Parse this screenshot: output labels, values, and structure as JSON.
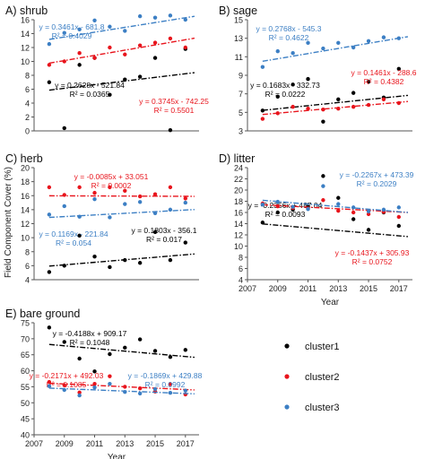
{
  "y_axis_label": "Field Component Cover (%)",
  "legend": {
    "placement": "bottom-right",
    "entries": [
      {
        "name": "cluster1",
        "color": "#000000"
      },
      {
        "name": "cluster2",
        "color": "#e8141c"
      },
      {
        "name": "cluster3",
        "color": "#3c7fc4"
      }
    ]
  },
  "chart_data": [
    {
      "id": "shrub",
      "type": "scatter",
      "title": "A) shrub",
      "xlabel": "",
      "ylabel": "",
      "xlim": [
        2007,
        2017.9
      ],
      "ylim": [
        0,
        16
      ],
      "yticks": [
        0,
        2,
        4,
        6,
        8,
        10,
        12,
        14,
        16
      ],
      "xticks": [],
      "series": [
        {
          "name": "cluster1",
          "color": "#000000",
          "x": [
            2008,
            2009,
            2010,
            2011,
            2012,
            2013,
            2014,
            2015,
            2016,
            2017
          ],
          "y": [
            7.0,
            0.4,
            9.5,
            10.5,
            5.2,
            7.4,
            7.8,
            10.5,
            0.1,
            11.8
          ],
          "fit": {
            "equation": "y = 0.2628x - 521.84",
            "r2": "R² = 0.0365",
            "a": 0.2628,
            "b": -521.84
          }
        },
        {
          "name": "cluster2",
          "color": "#e8141c",
          "x": [
            2008,
            2009,
            2010,
            2011,
            2012,
            2013,
            2014,
            2015,
            2016,
            2017
          ],
          "y": [
            9.5,
            10.0,
            11.2,
            10.5,
            12.0,
            11.0,
            12.3,
            12.7,
            13.3,
            12.0
          ],
          "fit": {
            "equation": "y = 0.3745x - 742.25",
            "r2": "R² = 0.5501",
            "a": 0.3745,
            "b": -742.25
          }
        },
        {
          "name": "cluster3",
          "color": "#3c7fc4",
          "x": [
            2008,
            2009,
            2010,
            2011,
            2012,
            2013,
            2014,
            2015,
            2016,
            2017
          ],
          "y": [
            12.5,
            14.1,
            14.6,
            15.9,
            15.0,
            14.4,
            16.5,
            16.3,
            16.6,
            16.0
          ],
          "fit": {
            "equation": "y = 0.3461x - 681.8",
            "r2": "R² = 0.4029",
            "a": 0.3461,
            "b": -681.8
          }
        }
      ]
    },
    {
      "id": "sage",
      "type": "scatter",
      "title": "B) sage",
      "xlabel": "",
      "ylabel": "",
      "xlim": [
        2007,
        2017.9
      ],
      "ylim": [
        3,
        15
      ],
      "yticks": [
        3,
        5,
        7,
        9,
        11,
        13,
        15
      ],
      "xticks": [],
      "series": [
        {
          "name": "cluster1",
          "color": "#000000",
          "x": [
            2008,
            2009,
            2010,
            2011,
            2012,
            2013,
            2014,
            2015,
            2016,
            2017
          ],
          "y": [
            5.2,
            6.7,
            8.0,
            8.6,
            4.0,
            6.4,
            7.1,
            8.3,
            6.6,
            9.7
          ],
          "fit": {
            "equation": "y = 0.1683x - 332.73",
            "r2": "R² = 0.0222",
            "a": 0.1683,
            "b": -332.73
          }
        },
        {
          "name": "cluster2",
          "color": "#e8141c",
          "x": [
            2008,
            2009,
            2010,
            2011,
            2012,
            2013,
            2014,
            2015,
            2016,
            2017
          ],
          "y": [
            4.3,
            4.9,
            5.6,
            5.4,
            5.3,
            5.4,
            5.6,
            5.8,
            6.4,
            6.0
          ],
          "fit": {
            "equation": "y = 0.1461x - 288.6",
            "r2": "R² = 0.4382",
            "a": 0.1461,
            "b": -288.6
          }
        },
        {
          "name": "cluster3",
          "color": "#3c7fc4",
          "x": [
            2008,
            2009,
            2010,
            2011,
            2012,
            2013,
            2014,
            2015,
            2016,
            2017
          ],
          "y": [
            9.9,
            11.6,
            11.4,
            12.5,
            11.9,
            12.5,
            12.0,
            12.7,
            13.1,
            13.0
          ],
          "fit": {
            "equation": "y = 0.2768x - 545.3",
            "r2": "R² = 0.4622",
            "a": 0.2768,
            "b": -545.3
          }
        }
      ]
    },
    {
      "id": "herb",
      "type": "scatter",
      "title": "C) herb",
      "xlabel": "",
      "ylabel": "",
      "xlim": [
        2007,
        2017.9
      ],
      "ylim": [
        4,
        20
      ],
      "yticks": [
        4,
        6,
        8,
        10,
        12,
        14,
        16,
        18,
        20
      ],
      "xticks": [],
      "series": [
        {
          "name": "cluster1",
          "color": "#000000",
          "x": [
            2008,
            2009,
            2010,
            2011,
            2012,
            2013,
            2014,
            2015,
            2016,
            2017
          ],
          "y": [
            5.1,
            6.0,
            10.3,
            7.3,
            5.8,
            6.8,
            6.4,
            10.8,
            6.8,
            9.3
          ],
          "fit": {
            "equation": "y = 0.1803x - 356.1",
            "r2": "R² = 0.017",
            "a": 0.1803,
            "b": -356.1
          }
        },
        {
          "name": "cluster2",
          "color": "#e8141c",
          "x": [
            2008,
            2009,
            2010,
            2011,
            2012,
            2013,
            2014,
            2015,
            2016,
            2017
          ],
          "y": [
            17.2,
            16.1,
            17.2,
            16.4,
            17.2,
            16.7,
            15.9,
            16.2,
            17.2,
            15.6
          ],
          "fit": {
            "equation": "y = -0.0085x + 33.051",
            "r2": "R² = 0.0002",
            "a": -0.0085,
            "b": 33.051
          }
        },
        {
          "name": "cluster3",
          "color": "#3c7fc4",
          "x": [
            2008,
            2009,
            2010,
            2011,
            2012,
            2013,
            2014,
            2015,
            2016,
            2017
          ],
          "y": [
            13.3,
            14.5,
            13.0,
            15.5,
            12.9,
            14.8,
            15.1,
            13.5,
            14.0,
            15.0
          ],
          "fit": {
            "equation": "y = 0.1169x - 221.84",
            "r2": "R² = 0.054",
            "a": 0.1169,
            "b": -221.84
          }
        }
      ]
    },
    {
      "id": "litter",
      "type": "scatter",
      "title": "D) litter",
      "xlabel": "Year",
      "ylabel": "",
      "xlim": [
        2007,
        2017.9
      ],
      "ylim": [
        4,
        24
      ],
      "yticks": [
        4,
        6,
        8,
        10,
        12,
        14,
        16,
        18,
        20,
        22,
        24
      ],
      "xticks": [
        2007,
        2009,
        2011,
        2013,
        2015,
        2017
      ],
      "series": [
        {
          "name": "cluster1",
          "color": "#000000",
          "x": [
            2008,
            2009,
            2010,
            2011,
            2012,
            2013,
            2014,
            2015,
            2016,
            2017
          ],
          "y": [
            14.2,
            16.0,
            16.5,
            17.0,
            22.5,
            18.6,
            14.8,
            12.9,
            16.0,
            13.6
          ],
          "fit": {
            "equation": "y = -0.2356x + 487.04",
            "r2": "R² = 0.0093",
            "a": -0.2356,
            "b": 487.04
          }
        },
        {
          "name": "cluster2",
          "color": "#e8141c",
          "x": [
            2008,
            2009,
            2010,
            2011,
            2012,
            2013,
            2014,
            2015,
            2016,
            2017
          ],
          "y": [
            17.6,
            17.1,
            16.8,
            16.7,
            18.2,
            16.3,
            16.0,
            15.7,
            16.1,
            15.2
          ],
          "fit": {
            "equation": "y = -0.1437x + 305.93",
            "r2": "R² = 0.0752",
            "a": -0.1437,
            "b": 305.93
          }
        },
        {
          "name": "cluster3",
          "color": "#3c7fc4",
          "x": [
            2008,
            2009,
            2010,
            2011,
            2012,
            2013,
            2014,
            2015,
            2016,
            2017
          ],
          "y": [
            17.4,
            17.9,
            17.0,
            16.6,
            20.7,
            17.5,
            16.9,
            16.2,
            16.5,
            16.9
          ],
          "fit": {
            "equation": "y = -0.2267x + 473.39",
            "r2": "R² = 0.2029",
            "a": -0.2267,
            "b": 473.39
          }
        }
      ]
    },
    {
      "id": "bare-ground",
      "type": "scatter",
      "title": "E) bare ground",
      "xlabel": "Year",
      "ylabel": "",
      "xlim": [
        2007,
        2017.9
      ],
      "ylim": [
        40,
        75
      ],
      "yticks": [
        40,
        45,
        50,
        55,
        60,
        65,
        70,
        75
      ],
      "xticks": [
        2007,
        2009,
        2011,
        2013,
        2015,
        2017
      ],
      "series": [
        {
          "name": "cluster1",
          "color": "#000000",
          "x": [
            2008,
            2009,
            2010,
            2011,
            2012,
            2013,
            2014,
            2015,
            2016,
            2017
          ],
          "y": [
            73.5,
            69.0,
            63.8,
            59.8,
            65.2,
            67.2,
            69.8,
            66.2,
            64.3,
            66.5
          ],
          "fit": {
            "equation": "y = -0.4188x + 909.17",
            "r2": "R² = 0.1048",
            "a": -0.4188,
            "b": 909.17
          }
        },
        {
          "name": "cluster2",
          "color": "#e8141c",
          "x": [
            2008,
            2009,
            2010,
            2011,
            2012,
            2013,
            2014,
            2015,
            2016,
            2017
          ],
          "y": [
            56.5,
            55.5,
            53.2,
            55.9,
            58.3,
            55.0,
            54.5,
            53.5,
            55.8,
            52.6
          ],
          "fit": {
            "equation": "y = -0.2171x + 492.03",
            "r2": "R² = 0.1085",
            "a": -0.2171,
            "b": 492.03
          }
        },
        {
          "name": "cluster3",
          "color": "#3c7fc4",
          "x": [
            2008,
            2009,
            2010,
            2011,
            2012,
            2013,
            2014,
            2015,
            2016,
            2017
          ],
          "y": [
            55.2,
            54.0,
            52.3,
            54.8,
            55.9,
            53.4,
            52.9,
            54.3,
            53.1,
            53.8
          ],
          "fit": {
            "equation": "y = -0.1869x + 429.88",
            "r2": "R² = 0.0992",
            "a": -0.1869,
            "b": 429.88
          }
        }
      ]
    }
  ]
}
